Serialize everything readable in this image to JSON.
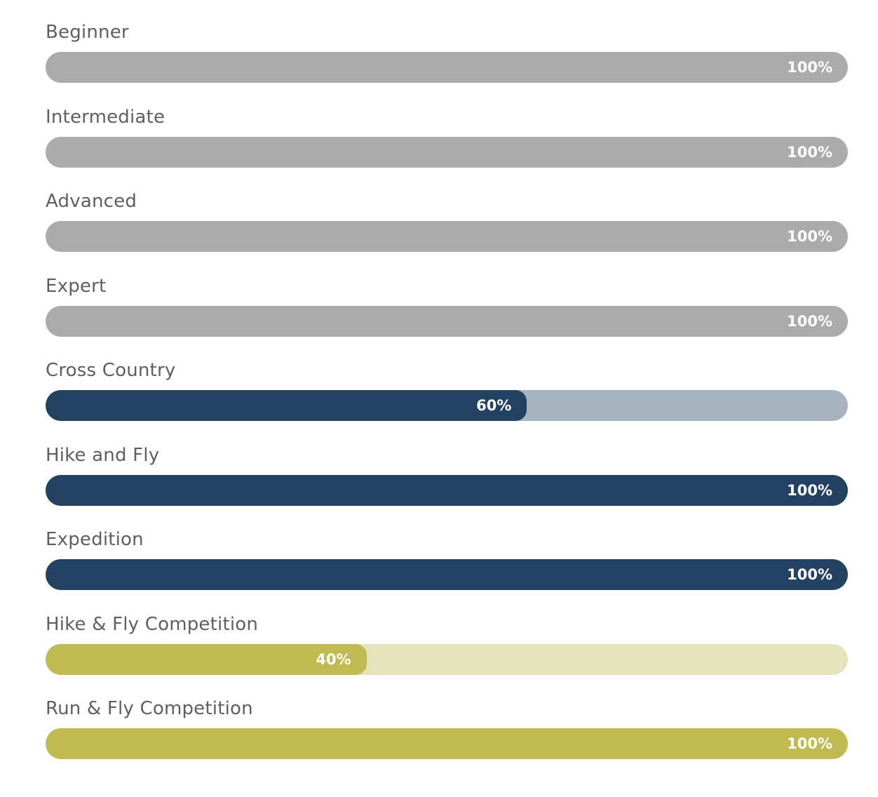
{
  "chart_data": {
    "type": "bar",
    "orientation": "horizontal",
    "categories": [
      "Beginner",
      "Intermediate",
      "Advanced",
      "Expert",
      "Cross Country",
      "Hike and Fly",
      "Expedition",
      "Hike & Fly Competition",
      "Run & Fly Competition"
    ],
    "values": [
      100,
      100,
      100,
      100,
      60,
      100,
      100,
      40,
      100
    ],
    "value_labels": [
      "100%",
      "100%",
      "100%",
      "100%",
      "60%",
      "100%",
      "100%",
      "40%",
      "100%"
    ],
    "xlim": [
      0,
      100
    ],
    "grid": false,
    "bars": [
      {
        "label": "Beginner",
        "value": 100,
        "value_label": "100%",
        "fill_color": "#ababab",
        "track_color": "#dddddd"
      },
      {
        "label": "Intermediate",
        "value": 100,
        "value_label": "100%",
        "fill_color": "#ababab",
        "track_color": "#dddddd"
      },
      {
        "label": "Advanced",
        "value": 100,
        "value_label": "100%",
        "fill_color": "#ababab",
        "track_color": "#dddddd"
      },
      {
        "label": "Expert",
        "value": 100,
        "value_label": "100%",
        "fill_color": "#ababab",
        "track_color": "#dddddd"
      },
      {
        "label": "Cross Country",
        "value": 60,
        "value_label": "60%",
        "fill_color": "#234261",
        "track_color": "#a7b3bf"
      },
      {
        "label": "Hike and Fly",
        "value": 100,
        "value_label": "100%",
        "fill_color": "#234261",
        "track_color": "#a7b3bf"
      },
      {
        "label": "Expedition",
        "value": 100,
        "value_label": "100%",
        "fill_color": "#234261",
        "track_color": "#a7b3bf"
      },
      {
        "label": "Hike & Fly Competition",
        "value": 40,
        "value_label": "40%",
        "fill_color": "#bfba51",
        "track_color": "#e5e3bb"
      },
      {
        "label": "Run & Fly Competition",
        "value": 100,
        "value_label": "100%",
        "fill_color": "#bfba51",
        "track_color": "#e5e3bb"
      }
    ]
  }
}
